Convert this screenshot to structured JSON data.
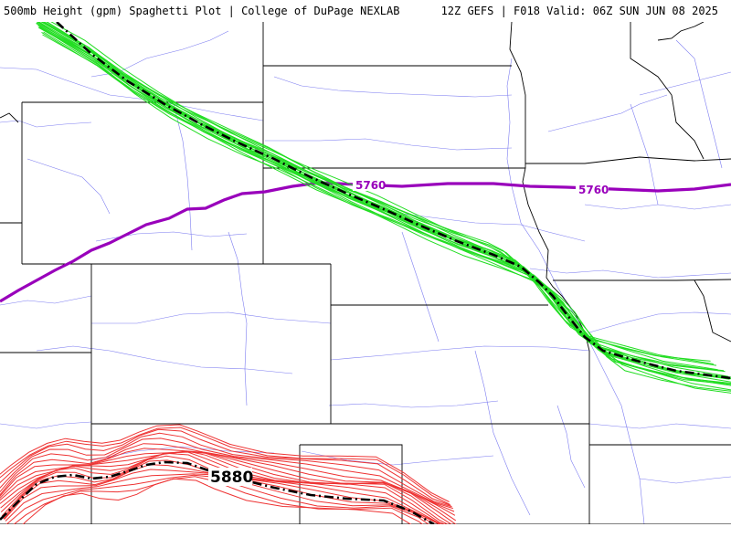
{
  "header": {
    "title_left": "500mb Height (gpm) Spaghetti Plot | College of DuPage NEXLAB",
    "title_right": "12Z GEFS | F018 Valid: 06Z SUN JUN 08 2025"
  },
  "map": {
    "colors": {
      "member_5760": "#22dd22",
      "member_5880": "#ee3333",
      "mean": "#000000",
      "reference_5760": "#9900bb",
      "state_borders": "#000000",
      "roads": "#6666ee"
    },
    "labels": {
      "purple_left": "5760",
      "purple_right": "5760",
      "mean_5880": "5880"
    }
  }
}
